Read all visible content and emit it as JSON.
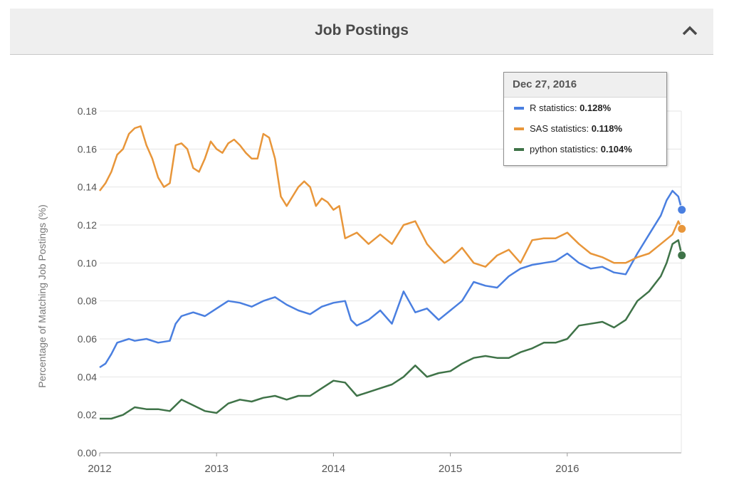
{
  "header": {
    "title": "Job Postings",
    "collapse_icon": "chevron-up-icon"
  },
  "tooltip": {
    "date": "Dec 27, 2016",
    "rows": [
      {
        "label": "R statistics",
        "value": "0.128%",
        "color": "#4a7fe0"
      },
      {
        "label": "SAS statistics",
        "value": "0.118%",
        "color": "#e8963a"
      },
      {
        "label": "python statistics",
        "value": "0.104%",
        "color": "#3f7348"
      }
    ]
  },
  "chart_data": {
    "type": "line",
    "title": "",
    "xlabel": "",
    "ylabel": "Percentage of Matching Job Postings (%)",
    "xlim": [
      2012,
      2017.0
    ],
    "ylim": [
      0,
      0.18
    ],
    "y_ticks": [
      0,
      0.02,
      0.04,
      0.06,
      0.08,
      0.1,
      0.12,
      0.14,
      0.16,
      0.18
    ],
    "y_tick_labels": [
      "0.00",
      "0.02",
      "0.04",
      "0.06",
      "0.08",
      "0.10",
      "0.12",
      "0.14",
      "0.16",
      "0.18"
    ],
    "x_ticks": [
      2012,
      2013,
      2014,
      2015,
      2016
    ],
    "x_tick_labels": [
      "2012",
      "2013",
      "2014",
      "2015",
      "2016"
    ],
    "grid": true,
    "series": [
      {
        "name": "R statistics",
        "color": "#4a7fe0",
        "x": [
          2012.0,
          2012.05,
          2012.1,
          2012.15,
          2012.2,
          2012.25,
          2012.3,
          2012.4,
          2012.5,
          2012.6,
          2012.65,
          2012.7,
          2012.75,
          2012.8,
          2012.9,
          2013.0,
          2013.1,
          2013.2,
          2013.3,
          2013.4,
          2013.5,
          2013.6,
          2013.7,
          2013.8,
          2013.9,
          2014.0,
          2014.1,
          2014.15,
          2014.2,
          2014.3,
          2014.4,
          2014.5,
          2014.6,
          2014.7,
          2014.8,
          2014.9,
          2015.0,
          2015.1,
          2015.2,
          2015.3,
          2015.4,
          2015.5,
          2015.6,
          2015.7,
          2015.8,
          2015.9,
          2016.0,
          2016.1,
          2016.2,
          2016.3,
          2016.4,
          2016.5,
          2016.6,
          2016.7,
          2016.8,
          2016.85,
          2016.9,
          2016.95,
          2016.98
        ],
        "y": [
          0.045,
          0.047,
          0.052,
          0.058,
          0.059,
          0.06,
          0.059,
          0.06,
          0.058,
          0.059,
          0.068,
          0.072,
          0.073,
          0.074,
          0.072,
          0.076,
          0.08,
          0.079,
          0.077,
          0.08,
          0.082,
          0.078,
          0.075,
          0.073,
          0.077,
          0.079,
          0.08,
          0.07,
          0.067,
          0.07,
          0.075,
          0.068,
          0.085,
          0.074,
          0.076,
          0.07,
          0.075,
          0.08,
          0.09,
          0.088,
          0.087,
          0.093,
          0.097,
          0.099,
          0.1,
          0.101,
          0.105,
          0.1,
          0.097,
          0.098,
          0.095,
          0.094,
          0.105,
          0.115,
          0.125,
          0.133,
          0.138,
          0.135,
          0.128
        ]
      },
      {
        "name": "SAS statistics",
        "color": "#e8963a",
        "x": [
          2012.0,
          2012.05,
          2012.1,
          2012.15,
          2012.2,
          2012.25,
          2012.3,
          2012.35,
          2012.4,
          2012.45,
          2012.5,
          2012.55,
          2012.6,
          2012.65,
          2012.7,
          2012.75,
          2012.8,
          2012.85,
          2012.9,
          2012.95,
          2013.0,
          2013.05,
          2013.1,
          2013.15,
          2013.2,
          2013.25,
          2013.3,
          2013.35,
          2013.4,
          2013.45,
          2013.5,
          2013.55,
          2013.6,
          2013.65,
          2013.7,
          2013.75,
          2013.8,
          2013.85,
          2013.9,
          2013.95,
          2014.0,
          2014.05,
          2014.1,
          2014.2,
          2014.3,
          2014.4,
          2014.5,
          2014.6,
          2014.7,
          2014.8,
          2014.9,
          2014.95,
          2015.0,
          2015.1,
          2015.2,
          2015.3,
          2015.4,
          2015.5,
          2015.6,
          2015.7,
          2015.8,
          2015.9,
          2016.0,
          2016.1,
          2016.2,
          2016.3,
          2016.4,
          2016.5,
          2016.6,
          2016.7,
          2016.8,
          2016.9,
          2016.95,
          2016.98
        ],
        "y": [
          0.138,
          0.142,
          0.148,
          0.157,
          0.16,
          0.168,
          0.171,
          0.172,
          0.162,
          0.155,
          0.145,
          0.14,
          0.142,
          0.162,
          0.163,
          0.16,
          0.15,
          0.148,
          0.155,
          0.164,
          0.16,
          0.158,
          0.163,
          0.165,
          0.162,
          0.158,
          0.155,
          0.155,
          0.168,
          0.166,
          0.155,
          0.135,
          0.13,
          0.135,
          0.14,
          0.143,
          0.14,
          0.13,
          0.134,
          0.132,
          0.128,
          0.13,
          0.113,
          0.116,
          0.11,
          0.115,
          0.11,
          0.12,
          0.122,
          0.11,
          0.103,
          0.1,
          0.102,
          0.108,
          0.1,
          0.098,
          0.104,
          0.107,
          0.1,
          0.112,
          0.113,
          0.113,
          0.116,
          0.11,
          0.105,
          0.103,
          0.1,
          0.1,
          0.103,
          0.105,
          0.11,
          0.115,
          0.122,
          0.118
        ]
      },
      {
        "name": "python statistics",
        "color": "#3f7348",
        "x": [
          2012.0,
          2012.1,
          2012.2,
          2012.3,
          2012.4,
          2012.5,
          2012.6,
          2012.7,
          2012.8,
          2012.9,
          2013.0,
          2013.1,
          2013.2,
          2013.3,
          2013.4,
          2013.5,
          2013.6,
          2013.7,
          2013.8,
          2013.9,
          2014.0,
          2014.1,
          2014.2,
          2014.3,
          2014.4,
          2014.5,
          2014.6,
          2014.7,
          2014.8,
          2014.9,
          2015.0,
          2015.1,
          2015.2,
          2015.3,
          2015.4,
          2015.5,
          2015.6,
          2015.7,
          2015.8,
          2015.9,
          2016.0,
          2016.1,
          2016.2,
          2016.3,
          2016.4,
          2016.5,
          2016.6,
          2016.7,
          2016.8,
          2016.85,
          2016.9,
          2016.95,
          2016.98
        ],
        "y": [
          0.018,
          0.018,
          0.02,
          0.024,
          0.023,
          0.023,
          0.022,
          0.028,
          0.025,
          0.022,
          0.021,
          0.026,
          0.028,
          0.027,
          0.029,
          0.03,
          0.028,
          0.03,
          0.03,
          0.034,
          0.038,
          0.037,
          0.03,
          0.032,
          0.034,
          0.036,
          0.04,
          0.046,
          0.04,
          0.042,
          0.043,
          0.047,
          0.05,
          0.051,
          0.05,
          0.05,
          0.053,
          0.055,
          0.058,
          0.058,
          0.06,
          0.067,
          0.068,
          0.069,
          0.066,
          0.07,
          0.08,
          0.085,
          0.093,
          0.1,
          0.11,
          0.112,
          0.104
        ]
      }
    ]
  }
}
